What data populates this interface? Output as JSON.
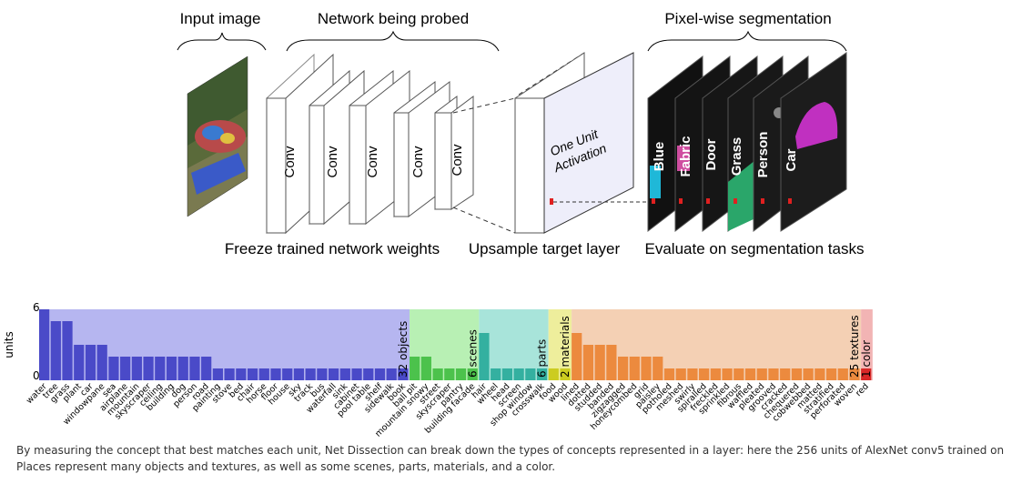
{
  "diagram": {
    "top_labels": {
      "input": "Input image",
      "network": "Network being probed",
      "segmentation": "Pixel-wise segmentation"
    },
    "bottom_labels": {
      "freeze": "Freeze trained network weights",
      "upsample": "Upsample target layer",
      "evaluate": "Evaluate on segmentation tasks"
    },
    "conv_label": "Conv",
    "unit_activation": [
      "One Unit",
      "Activation"
    ],
    "seg_layers": [
      "Blue",
      "Fabric",
      "Door",
      "Grass",
      "Person",
      "Car"
    ],
    "colors": {
      "blue": "#1fb8d8",
      "fabric": "#cf4ea0",
      "grass": "#2aa66a",
      "person": "#888",
      "car": "#c030c0"
    }
  },
  "chart_data": {
    "type": "bar",
    "ylabel": "units",
    "ylim": [
      0,
      6
    ],
    "yticks": [
      0,
      6
    ],
    "groups": [
      {
        "name": "objects",
        "label": "32 objects",
        "bg": "#b6b6f0",
        "bar": "#4a4ac8",
        "categories": [
          "water",
          "tree",
          "grass",
          "plant",
          "car",
          "windowpane",
          "sea",
          "airplane",
          "mountain",
          "skyscraper",
          "ceiling",
          "building",
          "dog",
          "person",
          "road",
          "painting",
          "stove",
          "bed",
          "chair",
          "horse",
          "floor",
          "house",
          "sky",
          "track",
          "bus",
          "waterfall",
          "sink",
          "cabinet",
          "pool table",
          "shelf",
          "sidewalk",
          "book"
        ],
        "values": [
          6,
          5,
          5,
          3,
          3,
          3,
          2,
          2,
          2,
          2,
          2,
          2,
          2,
          2,
          2,
          1,
          1,
          1,
          1,
          1,
          1,
          1,
          1,
          1,
          1,
          1,
          1,
          1,
          1,
          1,
          1,
          1
        ]
      },
      {
        "name": "scenes",
        "label": "6 scenes",
        "bg": "#b8f0b4",
        "bar": "#4cc24c",
        "categories": [
          "ball pit",
          "mountain snowy",
          "street",
          "skyscraper",
          "pantry",
          "building facade"
        ],
        "values": [
          2,
          2,
          1,
          1,
          1,
          1
        ]
      },
      {
        "name": "parts",
        "label": "6 parts",
        "bg": "#a8e4da",
        "bar": "#34b0a0",
        "categories": [
          "hair",
          "wheel",
          "head",
          "screen",
          "shop window",
          "crosswalk"
        ],
        "values": [
          4,
          1,
          1,
          1,
          1,
          1
        ]
      },
      {
        "name": "materials",
        "label": "2 materials",
        "bg": "#eeee9c",
        "bar": "#cccc20",
        "categories": [
          "food",
          "wood"
        ],
        "values": [
          1,
          1
        ]
      },
      {
        "name": "textures",
        "label": "25 textures",
        "bg": "#f4d0b4",
        "bar": "#ec8a3e",
        "categories": [
          "lined",
          "dotted",
          "studded",
          "banded",
          "zigzagged",
          "honeycombed",
          "grid",
          "paisley",
          "potholed",
          "meshed",
          "swirly",
          "spiralled",
          "freckled",
          "sprinkled",
          "fibrous",
          "waffled",
          "pleated",
          "grooved",
          "cracked",
          "chequered",
          "cobwebbed",
          "matted",
          "stratified",
          "perforated",
          "woven"
        ],
        "values": [
          4,
          3,
          3,
          3,
          2,
          2,
          2,
          2,
          1,
          1,
          1,
          1,
          1,
          1,
          1,
          1,
          1,
          1,
          1,
          1,
          1,
          1,
          1,
          1,
          1
        ]
      },
      {
        "name": "color",
        "label": "1 color",
        "bg": "#f2b4b4",
        "bar": "#d82828",
        "categories": [
          "red"
        ],
        "values": [
          1
        ]
      }
    ]
  },
  "caption": "By measuring the concept that best matches each unit, Net Dissection can break down the types of concepts represented in a layer: here the 256 units of AlexNet conv5 trained on Places represent many objects and textures, as well as some scenes, parts, materials, and a color."
}
